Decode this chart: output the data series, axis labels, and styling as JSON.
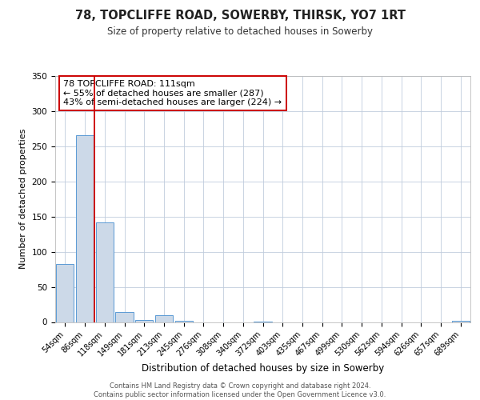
{
  "title": "78, TOPCLIFFE ROAD, SOWERBY, THIRSK, YO7 1RT",
  "subtitle": "Size of property relative to detached houses in Sowerby",
  "xlabel": "Distribution of detached houses by size in Sowerby",
  "ylabel": "Number of detached properties",
  "bin_labels": [
    "54sqm",
    "86sqm",
    "118sqm",
    "149sqm",
    "181sqm",
    "213sqm",
    "245sqm",
    "276sqm",
    "308sqm",
    "340sqm",
    "372sqm",
    "403sqm",
    "435sqm",
    "467sqm",
    "499sqm",
    "530sqm",
    "562sqm",
    "594sqm",
    "626sqm",
    "657sqm",
    "689sqm"
  ],
  "bar_heights": [
    82,
    266,
    142,
    14,
    3,
    10,
    2,
    0,
    0,
    0,
    1,
    0,
    0,
    0,
    0,
    0,
    0,
    0,
    0,
    0,
    2
  ],
  "bar_color": "#ccd9e8",
  "bar_edge_color": "#5b9bd5",
  "vline_color": "#cc0000",
  "annotation_text": "78 TOPCLIFFE ROAD: 111sqm\n← 55% of detached houses are smaller (287)\n43% of semi-detached houses are larger (224) →",
  "annotation_box_color": "#ffffff",
  "annotation_box_edge": "#cc0000",
  "ylim": [
    0,
    350
  ],
  "yticks": [
    0,
    50,
    100,
    150,
    200,
    250,
    300,
    350
  ],
  "footer_text": "Contains HM Land Registry data © Crown copyright and database right 2024.\nContains public sector information licensed under the Open Government Licence v3.0.",
  "background_color": "#ffffff",
  "grid_color": "#c0ccdd",
  "title_fontsize": 10.5,
  "subtitle_fontsize": 8.5,
  "ylabel_fontsize": 8,
  "xlabel_fontsize": 8.5,
  "tick_fontsize": 7,
  "annot_fontsize": 8,
  "footer_fontsize": 6
}
